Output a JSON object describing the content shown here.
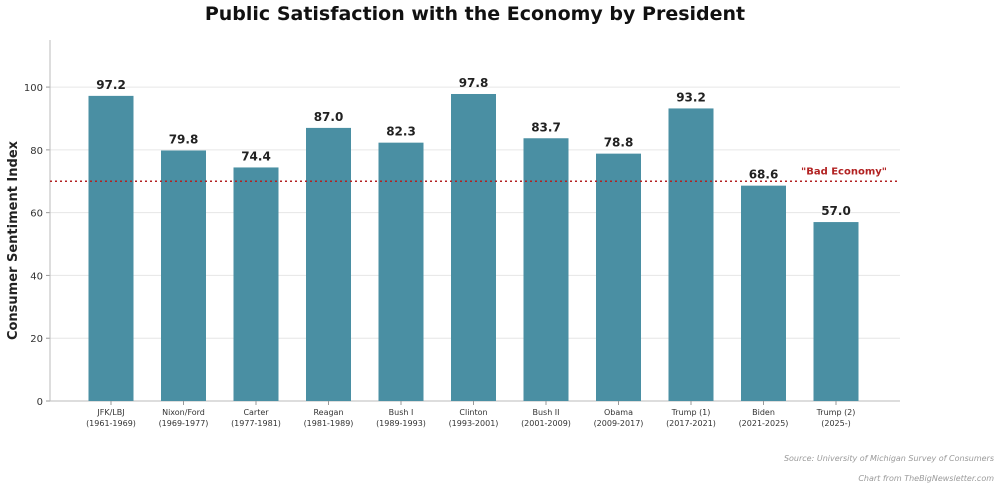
{
  "chart_data": {
    "type": "bar",
    "title": "Public Satisfaction with the Economy by President",
    "xlabel": "",
    "ylabel": "Consumer Sentiment Index",
    "categories": [
      {
        "name": "JFK/LBJ",
        "years": "(1961-1969)"
      },
      {
        "name": "Nixon/Ford",
        "years": "(1969-1977)"
      },
      {
        "name": "Carter",
        "years": "(1977-1981)"
      },
      {
        "name": "Reagan",
        "years": "(1981-1989)"
      },
      {
        "name": "Bush I",
        "years": "(1989-1993)"
      },
      {
        "name": "Clinton",
        "years": "(1993-2001)"
      },
      {
        "name": "Bush II",
        "years": "(2001-2009)"
      },
      {
        "name": "Obama",
        "years": "(2009-2017)"
      },
      {
        "name": "Trump (1)",
        "years": "(2017-2021)"
      },
      {
        "name": "Biden",
        "years": "(2021-2025)"
      },
      {
        "name": "Trump (2)",
        "years": "(2025-)"
      }
    ],
    "values": [
      97.2,
      79.8,
      74.4,
      87.0,
      82.3,
      97.8,
      83.7,
      78.8,
      93.2,
      68.6,
      57.0
    ],
    "value_labels": [
      "97.2",
      "79.8",
      "74.4",
      "87.0",
      "82.3",
      "97.8",
      "83.7",
      "78.8",
      "93.2",
      "68.6",
      "57.0"
    ],
    "ylim": [
      0,
      115
    ],
    "yticks": [
      0,
      20,
      40,
      60,
      80,
      100
    ],
    "grid": "horizontal",
    "reference_line": {
      "value": 70,
      "label": "\"Bad Economy\"",
      "color": "#b22222",
      "style": "dotted"
    },
    "bar_color": "#4a8fa3"
  },
  "footer": {
    "source": "Source: University of Michigan Survey of Consumers",
    "credit": "Chart from TheBigNewsletter.com"
  }
}
